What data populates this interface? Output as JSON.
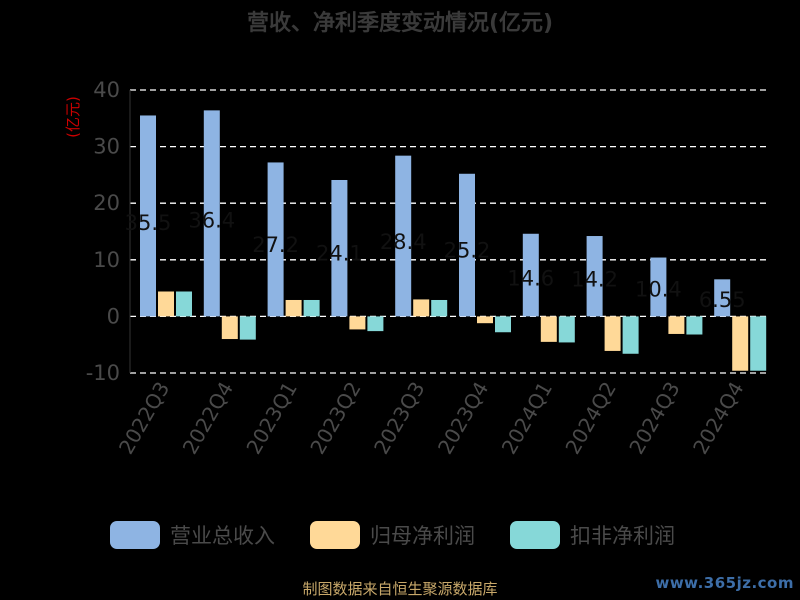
{
  "chart_data": {
    "type": "bar",
    "title": "营收、净利季度变动情况(亿元)",
    "ylabel": "(亿元)",
    "ylim": [
      -10,
      40
    ],
    "yticks": [
      -10,
      0,
      10,
      20,
      30,
      40
    ],
    "grid": true,
    "legend_position": "bottom",
    "categories": [
      "2022Q3",
      "2022Q4",
      "2023Q1",
      "2023Q2",
      "2023Q3",
      "2023Q4",
      "2024Q1",
      "2024Q2",
      "2024Q3",
      "2024Q4"
    ],
    "series": [
      {
        "name": "营业总收入",
        "color": "#8eb4e3",
        "values": [
          35.5,
          36.4,
          27.2,
          24.1,
          28.4,
          25.2,
          14.6,
          14.2,
          10.4,
          6.55
        ]
      },
      {
        "name": "归母净利润",
        "color": "#ffd998",
        "values": [
          4.4,
          -4.0,
          2.9,
          -2.3,
          3.0,
          -1.2,
          -4.5,
          -6.1,
          -3.1,
          -9.6
        ]
      },
      {
        "name": "扣非净利润",
        "color": "#86d8d8",
        "values": [
          4.4,
          -4.1,
          2.9,
          -2.6,
          2.9,
          -2.8,
          -4.6,
          -6.6,
          -3.2,
          -9.6
        ]
      }
    ],
    "data_labels": [
      "35.5",
      "36.4",
      "27.2",
      "24.1",
      "28.4",
      "25.2",
      "14.6",
      "14.2",
      "10.4",
      "6.55"
    ]
  },
  "footer": {
    "source": "制图数据来自恒生聚源数据库",
    "watermark": "www.365jz.com"
  },
  "colors": {
    "background": "#000000",
    "axis_text": "#4a4a4a",
    "ylabel": "#cc0000",
    "grid": "#ffffff"
  }
}
